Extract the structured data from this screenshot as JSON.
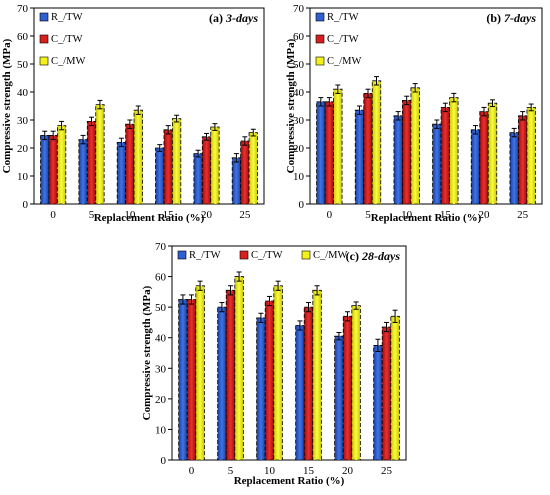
{
  "chart_data": [
    {
      "type": "bar",
      "title": "(a) 3-days",
      "xlabel": "Replacement Ratio (%)",
      "ylabel": "Compressive strength (MPa)",
      "categories": [
        "0",
        "5",
        "10",
        "15",
        "20",
        "25"
      ],
      "ylim": [
        0,
        70
      ],
      "yticks": [
        0,
        10,
        20,
        30,
        40,
        50,
        60,
        70
      ],
      "legend_position": "top-left",
      "series": [
        {
          "name": "R_/TW",
          "values": [
            24.5,
            23,
            22,
            20,
            18,
            16.5
          ],
          "errors": [
            1.5,
            1.5,
            1.5,
            1.2,
            1.2,
            1.5
          ]
        },
        {
          "name": "C_/TW",
          "values": [
            24.5,
            29.5,
            28.5,
            26.5,
            24,
            22.5
          ],
          "errors": [
            1.5,
            1.5,
            1.5,
            1.5,
            1.2,
            1.5
          ]
        },
        {
          "name": "C_/MW",
          "values": [
            28,
            35.5,
            33.5,
            30.5,
            27.5,
            25.5
          ],
          "errors": [
            1.5,
            1.5,
            1.5,
            1.2,
            1.2,
            1.2
          ]
        }
      ]
    },
    {
      "type": "bar",
      "title": "(b) 7-days",
      "xlabel": "Replacement Ratio (%)",
      "ylabel": "Compressive strength (MPa)",
      "categories": [
        "0",
        "5",
        "10",
        "15",
        "20",
        "25"
      ],
      "ylim": [
        0,
        70
      ],
      "yticks": [
        0,
        10,
        20,
        30,
        40,
        50,
        60,
        70
      ],
      "legend_position": "top-left",
      "series": [
        {
          "name": "R_/TW",
          "values": [
            36.5,
            33.5,
            31.5,
            28.5,
            26.5,
            25.5
          ],
          "errors": [
            1.5,
            1.5,
            1.5,
            1.5,
            1.5,
            1.5
          ]
        },
        {
          "name": "C_/TW",
          "values": [
            36.5,
            39.5,
            37,
            34.5,
            33,
            31.5
          ],
          "errors": [
            1.5,
            1.5,
            1.5,
            1.5,
            1.5,
            1.5
          ]
        },
        {
          "name": "C_/MW",
          "values": [
            41,
            44,
            41.5,
            38,
            36,
            34.5
          ],
          "errors": [
            1.5,
            1.5,
            1.5,
            1.5,
            1.2,
            1.2
          ]
        }
      ]
    },
    {
      "type": "bar",
      "title": "(c) 28-days",
      "xlabel": "Replacement Ratio (%)",
      "ylabel": "Compressive strength (MPa)",
      "categories": [
        "0",
        "5",
        "10",
        "15",
        "20",
        "25"
      ],
      "ylim": [
        0,
        70
      ],
      "yticks": [
        0,
        10,
        20,
        30,
        40,
        50,
        60,
        70
      ],
      "legend_position": "top-left",
      "series": [
        {
          "name": "R_/TW",
          "values": [
            52.5,
            50,
            46.5,
            44,
            40.5,
            37.5
          ],
          "errors": [
            1.5,
            1.5,
            1.5,
            1.5,
            1.2,
            2
          ]
        },
        {
          "name": "C_/TW",
          "values": [
            52.5,
            55.5,
            52,
            50,
            47,
            43.5
          ],
          "errors": [
            1.5,
            1.5,
            1.5,
            1.5,
            1.5,
            1.5
          ]
        },
        {
          "name": "C_/MW",
          "values": [
            57,
            60,
            57,
            55.5,
            50.5,
            47
          ],
          "errors": [
            1.5,
            1.5,
            1.5,
            1.5,
            1.2,
            2
          ]
        }
      ]
    }
  ],
  "colors": {
    "series": [
      "#2f5fd0",
      "#d81f1f",
      "#f2f21a"
    ],
    "series_gradient": [
      "#1a3f9e",
      "#b01010",
      "#d8d800"
    ]
  }
}
